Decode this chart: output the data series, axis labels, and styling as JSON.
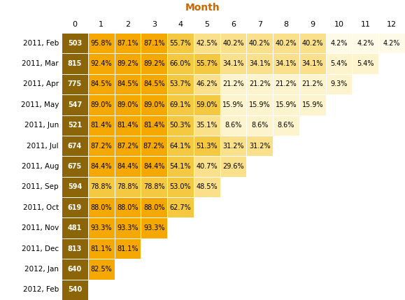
{
  "title": "Month",
  "row_labels": [
    "2011, Feb",
    "2011, Mar",
    "2011, Apr",
    "2011, May",
    "2011, Jun",
    "2011, Jul",
    "2011, Aug",
    "2011, Sep",
    "2011, Oct",
    "2011, Nov",
    "2011, Dec",
    "2012, Jan",
    "2012, Feb"
  ],
  "col_labels": [
    "0",
    "1",
    "2",
    "3",
    "4",
    "5",
    "6",
    "7",
    "8",
    "9",
    "10",
    "11",
    "12"
  ],
  "data": [
    [
      503,
      95.8,
      87.1,
      87.1,
      55.7,
      42.5,
      40.2,
      40.2,
      40.2,
      40.2,
      4.2,
      4.2,
      4.2
    ],
    [
      815,
      92.4,
      89.2,
      89.2,
      66.0,
      55.7,
      34.1,
      34.1,
      34.1,
      34.1,
      5.4,
      5.4,
      null
    ],
    [
      775,
      84.5,
      84.5,
      84.5,
      53.7,
      46.2,
      21.2,
      21.2,
      21.2,
      21.2,
      9.3,
      null,
      null
    ],
    [
      547,
      89.0,
      89.0,
      89.0,
      69.1,
      59.0,
      15.9,
      15.9,
      15.9,
      15.9,
      null,
      null,
      null
    ],
    [
      521,
      81.4,
      81.4,
      81.4,
      50.3,
      35.1,
      8.6,
      8.6,
      8.6,
      null,
      null,
      null,
      null
    ],
    [
      674,
      87.2,
      87.2,
      87.2,
      64.1,
      51.3,
      31.2,
      31.2,
      null,
      null,
      null,
      null,
      null
    ],
    [
      675,
      84.4,
      84.4,
      84.4,
      54.1,
      40.7,
      29.6,
      null,
      null,
      null,
      null,
      null,
      null
    ],
    [
      594,
      78.8,
      78.8,
      78.8,
      53.0,
      48.5,
      null,
      null,
      null,
      null,
      null,
      null,
      null
    ],
    [
      619,
      88.0,
      88.0,
      88.0,
      62.7,
      null,
      null,
      null,
      null,
      null,
      null,
      null,
      null
    ],
    [
      481,
      93.3,
      93.3,
      93.3,
      null,
      null,
      null,
      null,
      null,
      null,
      null,
      null,
      null
    ],
    [
      813,
      81.1,
      81.1,
      null,
      null,
      null,
      null,
      null,
      null,
      null,
      null,
      null,
      null
    ],
    [
      640,
      82.5,
      null,
      null,
      null,
      null,
      null,
      null,
      null,
      null,
      null,
      null,
      null
    ],
    [
      540,
      null,
      null,
      null,
      null,
      null,
      null,
      null,
      null,
      null,
      null,
      null,
      null
    ]
  ],
  "bg_color": "#ffffff",
  "color_size": "#8B6508",
  "color_high": "#F5A800",
  "color_med_high": "#F5C842",
  "color_med": "#FAE08A",
  "color_low": "#FDF3CC",
  "color_vlow": "#FEFAE8",
  "title_color": "#CC6600",
  "text_white": "#FFFFFF",
  "text_black": "#000000",
  "grid_color": "#FFFFFF",
  "title_fontsize": 10,
  "label_fontsize": 8,
  "cell_fontsize": 7,
  "row_label_fontsize": 7.5
}
